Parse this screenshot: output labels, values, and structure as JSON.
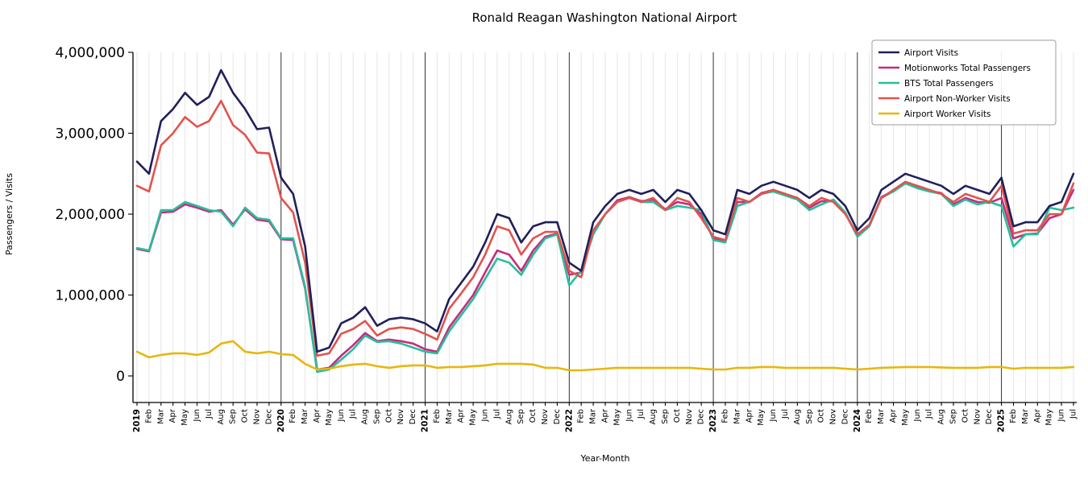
{
  "chart_data": {
    "type": "line",
    "title": "Ronald Reagan Washington National Airport",
    "xlabel": "Year-Month",
    "ylabel": "Passengers / Visits",
    "ylim": [
      0,
      4000000
    ],
    "grid": "vertical-monthly, dark line at each January",
    "legend_position": "upper right",
    "yticks": [
      0,
      1000000,
      2000000,
      3000000,
      4000000
    ],
    "ytick_labels": [
      "0",
      "1,000,000",
      "2,000,000",
      "3,000,000",
      "4,000,000"
    ],
    "categories": [
      "2019",
      "Feb",
      "Mar",
      "Apr",
      "May",
      "Jun",
      "Jul",
      "Aug",
      "Sep",
      "Oct",
      "Nov",
      "Dec",
      "2020",
      "Feb",
      "Mar",
      "Apr",
      "May",
      "Jun",
      "Jul",
      "Aug",
      "Sep",
      "Oct",
      "Nov",
      "Dec",
      "2021",
      "Feb",
      "Mar",
      "Apr",
      "May",
      "Jun",
      "Jul",
      "Aug",
      "Sep",
      "Oct",
      "Nov",
      "Dec",
      "2022",
      "Feb",
      "Mar",
      "Apr",
      "May",
      "Jun",
      "Jul",
      "Aug",
      "Sep",
      "Oct",
      "Nov",
      "Dec",
      "2023",
      "Feb",
      "Mar",
      "Apr",
      "May",
      "Jun",
      "Jul",
      "Aug",
      "Sep",
      "Oct",
      "Nov",
      "Dec",
      "2024",
      "Feb",
      "Mar",
      "Apr",
      "May",
      "Jun",
      "Jul",
      "Aug",
      "Sep",
      "Oct",
      "Nov",
      "Dec",
      "2025",
      "Feb",
      "Mar",
      "Apr",
      "May",
      "Jun",
      "Jul"
    ],
    "series": [
      {
        "name": "Airport Visits",
        "color": "#20205a",
        "values": [
          2650000,
          2500000,
          3150000,
          3300000,
          3500000,
          3350000,
          3450000,
          3780000,
          3500000,
          3300000,
          3050000,
          3070000,
          2450000,
          2250000,
          1600000,
          300000,
          350000,
          650000,
          720000,
          850000,
          620000,
          700000,
          720000,
          700000,
          650000,
          550000,
          950000,
          1150000,
          1350000,
          1650000,
          2000000,
          1950000,
          1650000,
          1850000,
          1900000,
          1900000,
          1400000,
          1300000,
          1900000,
          2100000,
          2250000,
          2300000,
          2250000,
          2300000,
          2150000,
          2300000,
          2250000,
          2050000,
          1800000,
          1750000,
          2300000,
          2250000,
          2350000,
          2400000,
          2350000,
          2300000,
          2200000,
          2300000,
          2250000,
          2100000,
          1800000,
          1950000,
          2300000,
          2400000,
          2500000,
          2450000,
          2400000,
          2350000,
          2250000,
          2350000,
          2300000,
          2250000,
          2450000,
          1850000,
          1900000,
          1900000,
          2100000,
          2150000,
          2500000
        ]
      },
      {
        "name": "Motionworks Total Passengers",
        "color": "#c42c80",
        "values": [
          1570000,
          1540000,
          2020000,
          2030000,
          2120000,
          2080000,
          2030000,
          2050000,
          1870000,
          2060000,
          1930000,
          1910000,
          1690000,
          1680000,
          1080000,
          80000,
          100000,
          250000,
          380000,
          530000,
          430000,
          450000,
          430000,
          400000,
          330000,
          300000,
          600000,
          800000,
          1000000,
          1280000,
          1550000,
          1500000,
          1300000,
          1550000,
          1720000,
          1760000,
          1250000,
          1280000,
          1780000,
          2000000,
          2170000,
          2210000,
          2160000,
          2180000,
          2060000,
          2150000,
          2120000,
          2000000,
          1700000,
          1660000,
          2150000,
          2150000,
          2260000,
          2300000,
          2240000,
          2200000,
          2080000,
          2160000,
          2160000,
          2010000,
          1730000,
          1860000,
          2210000,
          2290000,
          2390000,
          2330000,
          2290000,
          2260000,
          2120000,
          2200000,
          2150000,
          2140000,
          2200000,
          1700000,
          1750000,
          1760000,
          1950000,
          2000000,
          2300000
        ]
      },
      {
        "name": "BTS Total Passengers",
        "color": "#29bd9b",
        "values": [
          1580000,
          1550000,
          2050000,
          2050000,
          2150000,
          2100000,
          2050000,
          2030000,
          1850000,
          2080000,
          1950000,
          1930000,
          1700000,
          1700000,
          1100000,
          50000,
          80000,
          200000,
          330000,
          500000,
          420000,
          430000,
          400000,
          350000,
          300000,
          280000,
          550000,
          750000,
          950000,
          1200000,
          1450000,
          1400000,
          1250000,
          1500000,
          1700000,
          1750000,
          1120000,
          1300000,
          1750000,
          2000000,
          2150000,
          2200000,
          2150000,
          2150000,
          2050000,
          2100000,
          2080000,
          2050000,
          1680000,
          1650000,
          2100000,
          2150000,
          2250000,
          2280000,
          2230000,
          2180000,
          2050000,
          2120000,
          2180000,
          2020000,
          1720000,
          1850000,
          2200000,
          2280000,
          2380000,
          2320000,
          2280000,
          2250000,
          2100000,
          2180000,
          2120000,
          2150000,
          2100000,
          1600000,
          1750000,
          1750000,
          2080000,
          2050000,
          2080000
        ]
      },
      {
        "name": "Airport Non-Worker Visits",
        "color": "#e0534e",
        "values": [
          2350000,
          2280000,
          2850000,
          3000000,
          3200000,
          3080000,
          3150000,
          3400000,
          3100000,
          2980000,
          2760000,
          2750000,
          2200000,
          2020000,
          1400000,
          250000,
          280000,
          520000,
          580000,
          680000,
          500000,
          580000,
          600000,
          580000,
          520000,
          450000,
          830000,
          1020000,
          1220000,
          1500000,
          1850000,
          1800000,
          1500000,
          1700000,
          1780000,
          1780000,
          1300000,
          1220000,
          1800000,
          2000000,
          2150000,
          2200000,
          2150000,
          2200000,
          2050000,
          2200000,
          2150000,
          1950000,
          1720000,
          1680000,
          2200000,
          2150000,
          2250000,
          2300000,
          2250000,
          2200000,
          2100000,
          2200000,
          2150000,
          2000000,
          1750000,
          1870000,
          2200000,
          2300000,
          2400000,
          2350000,
          2300000,
          2250000,
          2150000,
          2250000,
          2200000,
          2150000,
          2350000,
          1760000,
          1800000,
          1800000,
          2000000,
          2000000,
          2380000
        ]
      },
      {
        "name": "Airport Worker Visits",
        "color": "#e7b70f",
        "values": [
          300000,
          230000,
          260000,
          280000,
          280000,
          260000,
          290000,
          400000,
          430000,
          300000,
          280000,
          300000,
          270000,
          260000,
          150000,
          80000,
          90000,
          120000,
          140000,
          150000,
          120000,
          100000,
          120000,
          130000,
          130000,
          100000,
          110000,
          110000,
          120000,
          130000,
          150000,
          150000,
          150000,
          140000,
          100000,
          100000,
          70000,
          70000,
          80000,
          90000,
          100000,
          100000,
          100000,
          100000,
          100000,
          100000,
          100000,
          90000,
          80000,
          80000,
          100000,
          100000,
          110000,
          110000,
          100000,
          100000,
          100000,
          100000,
          100000,
          90000,
          80000,
          90000,
          100000,
          105000,
          110000,
          110000,
          110000,
          105000,
          100000,
          100000,
          100000,
          110000,
          110000,
          90000,
          100000,
          100000,
          100000,
          100000,
          110000
        ]
      }
    ]
  }
}
